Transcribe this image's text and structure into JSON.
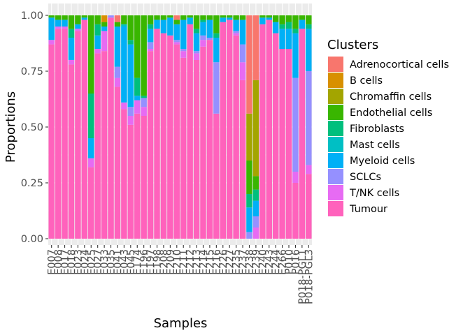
{
  "chart_data": {
    "type": "bar",
    "stacked": true,
    "xlabel": "Samples",
    "ylabel": "Proportions",
    "ylim": [
      0,
      1
    ],
    "yticks": [
      "0.00",
      "0.25",
      "0.50",
      "0.75",
      "1.00"
    ],
    "grid": true,
    "legend": {
      "title": "Clusters",
      "position": "right"
    },
    "categories": [
      "E007",
      "E008",
      "E017",
      "E018",
      "E023",
      "E024",
      "E025",
      "E027",
      "E033",
      "E035",
      "E041",
      "E043",
      "E045",
      "E174",
      "E196",
      "E197",
      "E198",
      "E208",
      "E209",
      "E210",
      "E211",
      "E212",
      "E213",
      "E214",
      "E215",
      "E216",
      "E226",
      "E227",
      "E235",
      "E237",
      "E238",
      "E239",
      "E240",
      "E243",
      "E244",
      "E266",
      "P010",
      "P016",
      "P018-PGL1",
      "P018-PGL3"
    ],
    "series": [
      {
        "name": "Adrenocortical cells",
        "color": "#F8766D"
      },
      {
        "name": "B cells",
        "color": "#D89000"
      },
      {
        "name": "Chromaffin cells",
        "color": "#A3A500"
      },
      {
        "name": "Endothelial cells",
        "color": "#39B600"
      },
      {
        "name": "Fibroblasts",
        "color": "#00BF7D"
      },
      {
        "name": "Mast cells",
        "color": "#00BFC4"
      },
      {
        "name": "Myeloid cells",
        "color": "#00B0F6"
      },
      {
        "name": "SCLCs",
        "color": "#9590FF"
      },
      {
        "name": "T/NK cells",
        "color": "#E76BF3"
      },
      {
        "name": "Tumour",
        "color": "#FF62BC"
      }
    ],
    "proportions": [
      [
        0,
        0,
        0,
        0.01,
        0,
        0,
        0.1,
        0,
        0.02,
        0.87
      ],
      [
        0,
        0,
        0,
        0.02,
        0,
        0,
        0.03,
        0,
        0.01,
        0.94
      ],
      [
        0,
        0,
        0,
        0.02,
        0,
        0,
        0.03,
        0,
        0.01,
        0.94
      ],
      [
        0,
        0,
        0,
        0.06,
        0.04,
        0,
        0.1,
        0,
        0.02,
        0.78
      ],
      [
        0,
        0,
        0,
        0.04,
        0,
        0,
        0.02,
        0,
        0.01,
        0.93
      ],
      [
        0,
        0,
        0,
        0.01,
        0,
        0,
        0.01,
        0,
        0,
        0.98
      ],
      [
        0,
        0,
        0,
        0.35,
        0.2,
        0,
        0.09,
        0,
        0.04,
        0.32
      ],
      [
        0,
        0,
        0,
        0.04,
        0.05,
        0,
        0.06,
        0,
        0.02,
        0.83
      ],
      [
        0,
        0.03,
        0,
        0.02,
        0,
        0,
        0.02,
        0,
        0.09,
        0.84
      ],
      [
        0,
        0,
        0,
        0,
        0,
        0,
        0,
        0.01,
        0,
        0.99
      ],
      [
        0.03,
        0,
        0,
        0.02,
        0,
        0,
        0.18,
        0.05,
        0.04,
        0.68
      ],
      [
        0,
        0,
        0,
        0.04,
        0,
        0.01,
        0.34,
        0,
        0.03,
        0.58
      ],
      [
        0,
        0,
        0,
        0.11,
        0.02,
        0,
        0.28,
        0.04,
        0.04,
        0.51
      ],
      [
        0,
        0,
        0,
        0.28,
        0.08,
        0,
        0.02,
        0,
        0.06,
        0.56
      ],
      [
        0,
        0,
        0,
        0.36,
        0.01,
        0,
        0,
        0.04,
        0.04,
        0.55
      ],
      [
        0,
        0,
        0,
        0.04,
        0.02,
        0,
        0.06,
        0.03,
        0.01,
        0.84
      ],
      [
        0,
        0,
        0,
        0.02,
        0,
        0,
        0.04,
        0,
        0,
        0.94
      ],
      [
        0,
        0,
        0,
        0.02,
        0,
        0,
        0.06,
        0,
        0,
        0.92
      ],
      [
        0,
        0,
        0,
        0.01,
        0,
        0,
        0.08,
        0,
        0,
        0.91
      ],
      [
        0.02,
        0,
        0,
        0.02,
        0,
        0,
        0.07,
        0.01,
        0.01,
        0.87
      ],
      [
        0,
        0,
        0,
        0.02,
        0,
        0,
        0.13,
        0.01,
        0.03,
        0.81
      ],
      [
        0,
        0,
        0,
        0.01,
        0,
        0,
        0.03,
        0,
        0,
        0.96
      ],
      [
        0,
        0,
        0,
        0.06,
        0.02,
        0,
        0.08,
        0.01,
        0.03,
        0.8
      ],
      [
        0,
        0,
        0,
        0.02,
        0.01,
        0,
        0.06,
        0.02,
        0.03,
        0.86
      ],
      [
        0,
        0,
        0,
        0.02,
        0,
        0,
        0.08,
        0.01,
        0,
        0.89
      ],
      [
        0,
        0,
        0,
        0.08,
        0.02,
        0,
        0.11,
        0.23,
        0,
        0.56
      ],
      [
        0,
        0,
        0,
        0.01,
        0,
        0,
        0.02,
        0,
        0,
        0.97
      ],
      [
        0,
        0,
        0,
        0.01,
        0,
        0,
        0.01,
        0,
        0,
        0.98
      ],
      [
        0,
        0,
        0,
        0.02,
        0,
        0,
        0.05,
        0.01,
        0.01,
        0.91
      ],
      [
        0,
        0,
        0,
        0.02,
        0,
        0,
        0.11,
        0.08,
        0.08,
        0.71
      ],
      [
        0.44,
        0,
        0.21,
        0.15,
        0.06,
        0,
        0.11,
        0.03,
        0,
        0
      ],
      [
        0.29,
        0,
        0.43,
        0.06,
        0.05,
        0,
        0.07,
        0.05,
        0.05,
        0
      ],
      [
        0,
        0,
        0,
        0.01,
        0,
        0,
        0.03,
        0,
        0,
        0.96
      ],
      [
        0,
        0,
        0,
        0.01,
        0,
        0,
        0.01,
        0,
        0,
        0.98
      ],
      [
        0,
        0,
        0,
        0.03,
        0,
        0,
        0.05,
        0,
        0,
        0.92
      ],
      [
        0,
        0,
        0,
        0.04,
        0.02,
        0,
        0.09,
        0,
        0,
        0.85
      ],
      [
        0,
        0,
        0,
        0.03,
        0.03,
        0,
        0.09,
        0,
        0,
        0.85
      ],
      [
        0,
        0,
        0,
        0.06,
        0.02,
        0,
        0.2,
        0.42,
        0.05,
        0.25
      ],
      [
        0,
        0,
        0,
        0.02,
        0,
        0,
        0.04,
        0,
        0,
        0.94
      ],
      [
        0,
        0,
        0,
        0.04,
        0.02,
        0,
        0.19,
        0.42,
        0.04,
        0.29
      ]
    ]
  }
}
